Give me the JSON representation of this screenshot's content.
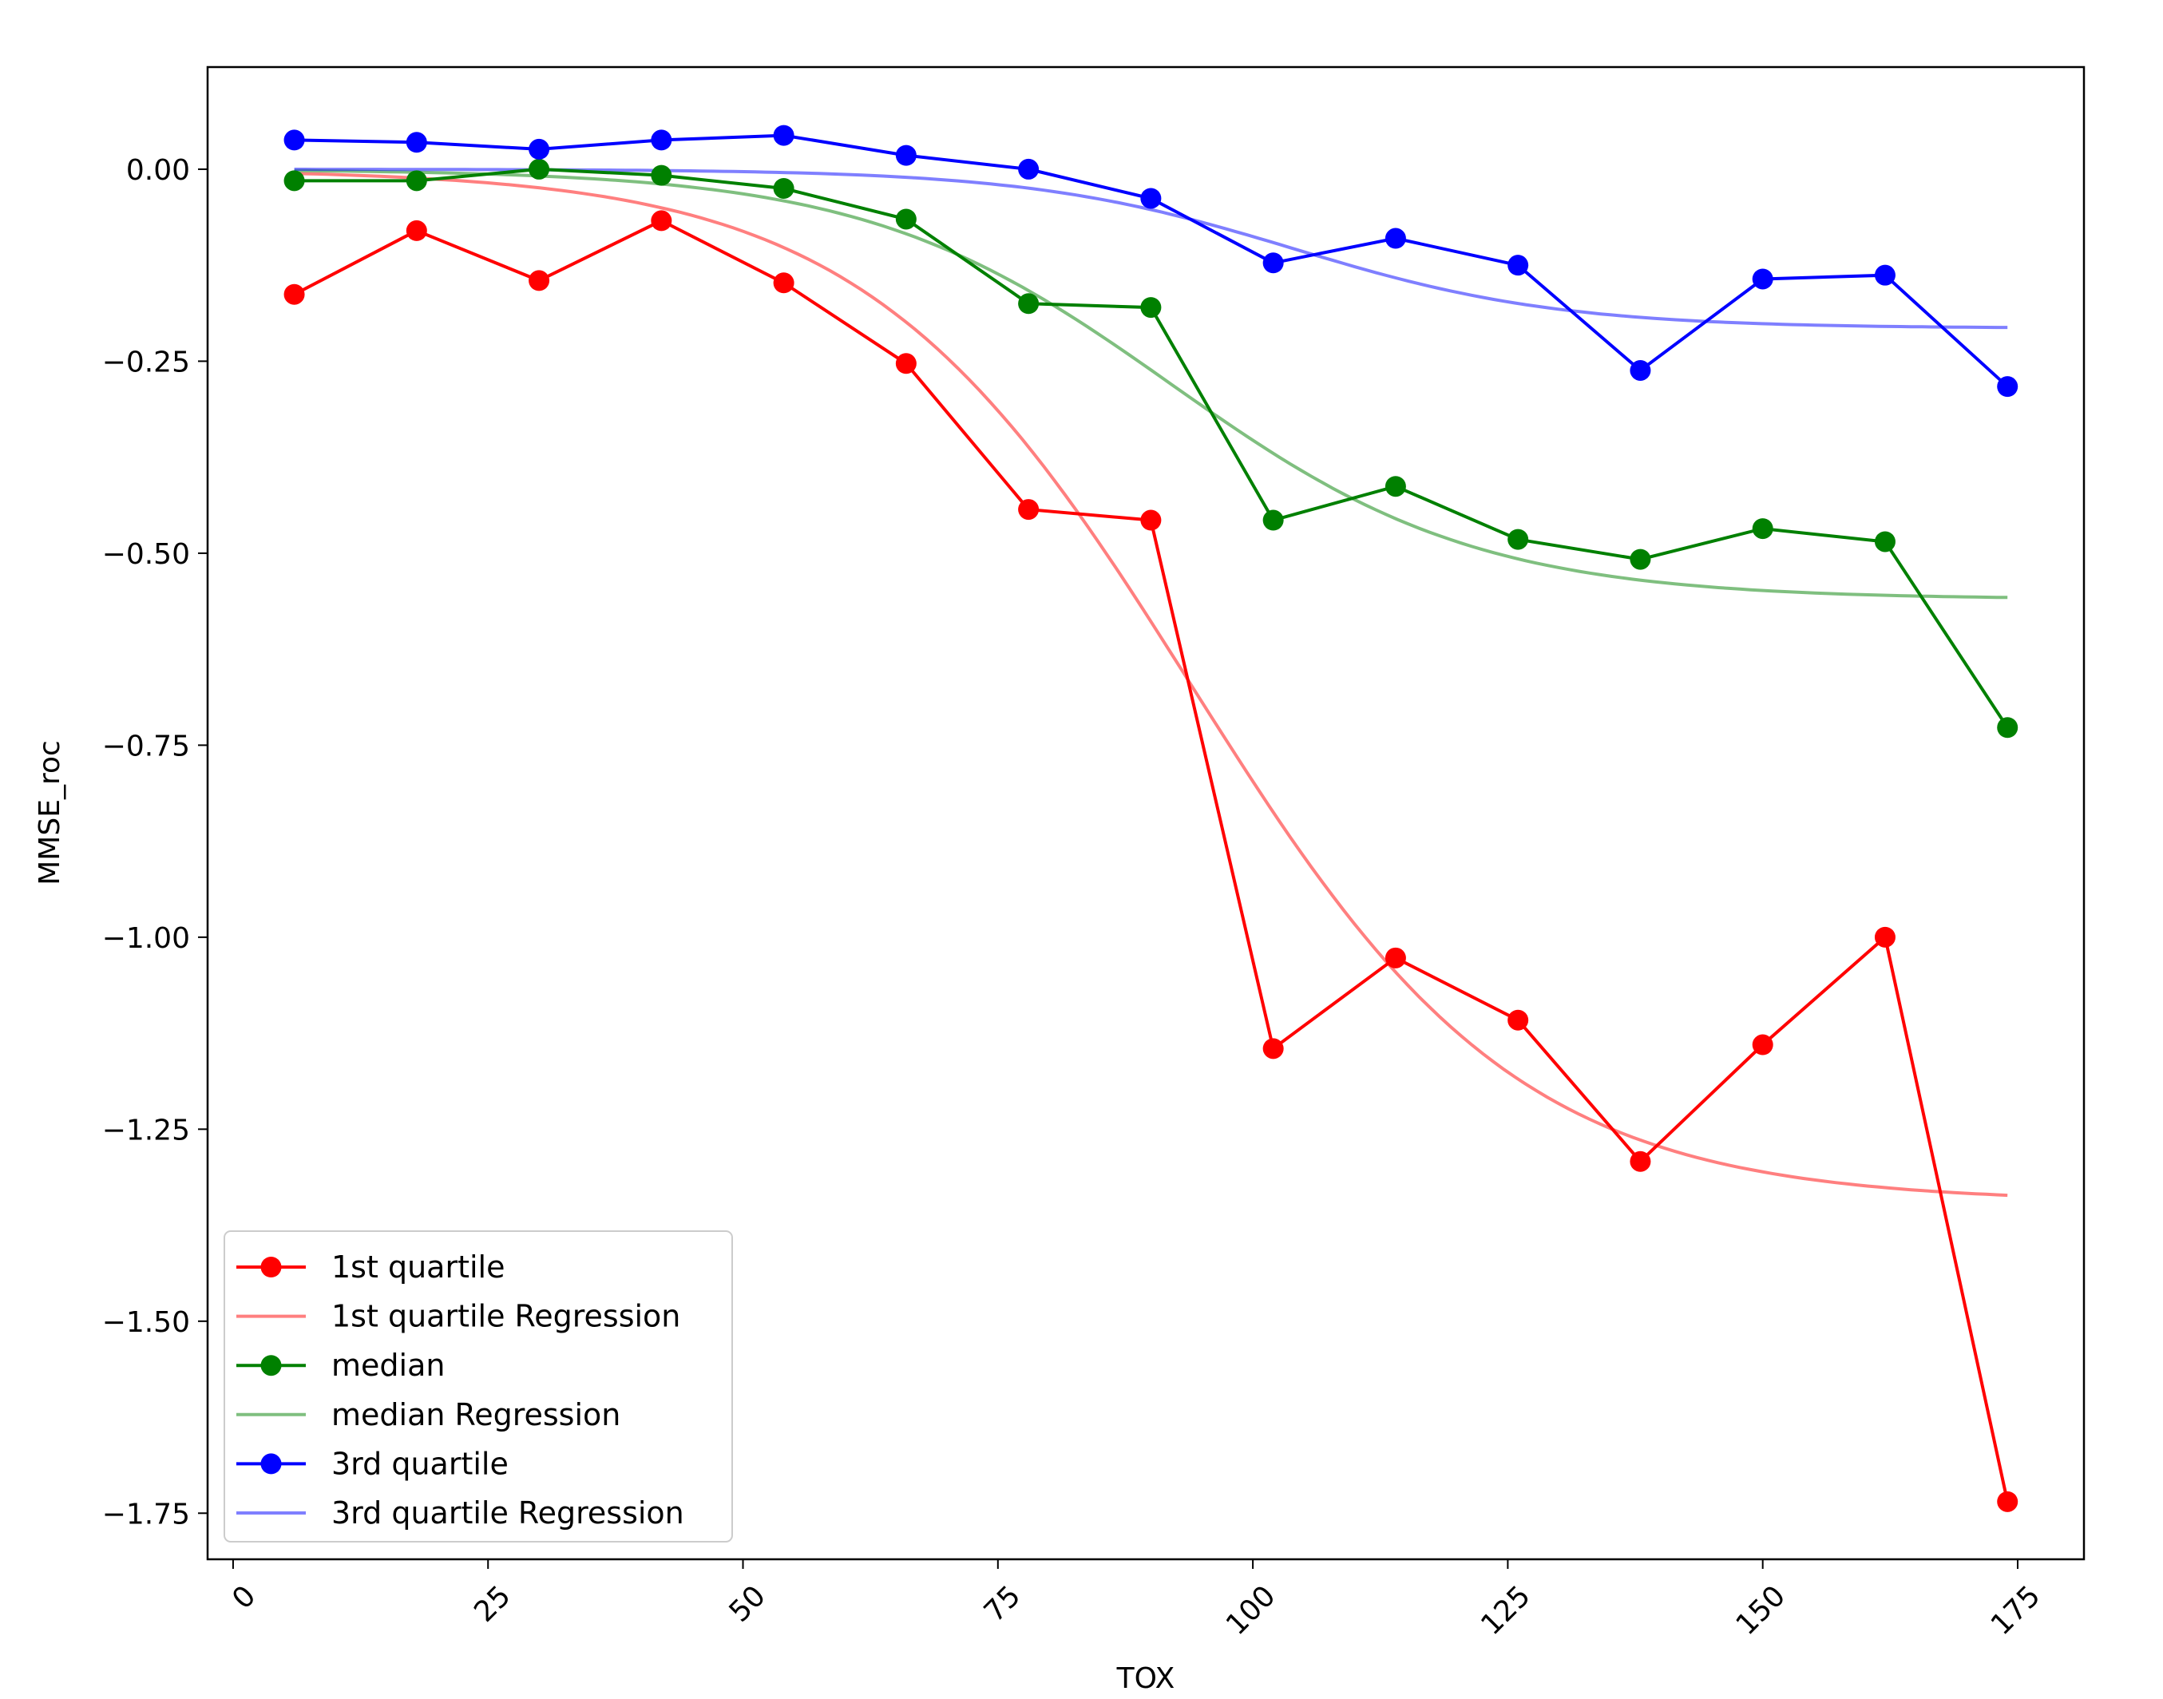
{
  "chart_data": {
    "type": "line",
    "title": "",
    "xlabel": "TOX",
    "ylabel": "MMSE_roc",
    "xlim": [
      -2.5,
      181.5
    ],
    "ylim": [
      -1.81,
      0.133
    ],
    "grid": false,
    "legend_position": "lower-left",
    "x_ticks": [
      0,
      25,
      50,
      75,
      100,
      125,
      150,
      175
    ],
    "x_tick_labels": [
      "0",
      "25",
      "50",
      "75",
      "100",
      "125",
      "150",
      "175"
    ],
    "y_ticks": [
      0,
      -0.25,
      -0.5,
      -0.75,
      -1.0,
      -1.25,
      -1.5,
      -1.75
    ],
    "y_tick_labels": [
      "0.00",
      "−0.25",
      "−0.50",
      "−0.75",
      "−1.00",
      "−1.25",
      "−1.50",
      "−1.75"
    ],
    "x": [
      6,
      18,
      30,
      42,
      54,
      66,
      78,
      90,
      102,
      114,
      126,
      138,
      150,
      162,
      174
    ],
    "series": [
      {
        "name": "1st quartile",
        "kind": "markers",
        "color": "#ff0000",
        "values": [
          -0.163,
          -0.08,
          -0.145,
          -0.067,
          -0.148,
          -0.253,
          -0.443,
          -0.457,
          -1.145,
          -1.027,
          -1.108,
          -1.292,
          -1.14,
          -1.0,
          -1.735
        ]
      },
      {
        "name": "1st quartile Regression",
        "kind": "regression",
        "color": "#ff0000",
        "alpha": 0.5,
        "params": {
          "a": -1.345,
          "x0": 94,
          "s": 16
        }
      },
      {
        "name": "median",
        "kind": "markers",
        "color": "#008000",
        "values": [
          -0.015,
          -0.015,
          0.0,
          -0.008,
          -0.025,
          -0.065,
          -0.175,
          -0.18,
          -0.457,
          -0.413,
          -0.482,
          -0.508,
          -0.468,
          -0.485,
          -0.727
        ]
      },
      {
        "name": "median Regression",
        "kind": "regression",
        "color": "#008000",
        "alpha": 0.5,
        "params": {
          "a": -0.56,
          "x0": 92,
          "s": 15
        }
      },
      {
        "name": "3rd quartile",
        "kind": "markers",
        "color": "#0000ff",
        "values": [
          0.038,
          0.035,
          0.026,
          0.038,
          0.044,
          0.018,
          0.0,
          -0.038,
          -0.122,
          -0.09,
          -0.125,
          -0.262,
          -0.143,
          -0.138,
          -0.283
        ]
      },
      {
        "name": "3rd quartile Regression",
        "kind": "regression",
        "color": "#0000ff",
        "alpha": 0.5,
        "params": {
          "a": -0.207,
          "x0": 104,
          "s": 13
        }
      }
    ]
  }
}
